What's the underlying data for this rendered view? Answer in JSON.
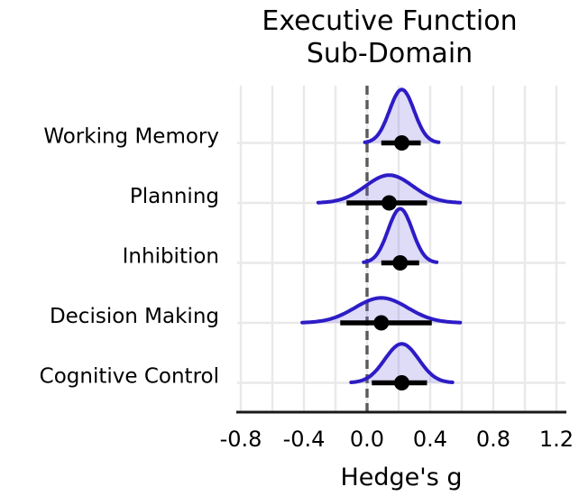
{
  "figure": {
    "title_line1": "Executive Function",
    "title_line2": "Sub-Domain",
    "xlabel": "Hedge's g"
  },
  "chart_data": {
    "type": "ridgeline_forest",
    "title": "Executive Function Sub-Domain",
    "xlabel": "Hedge's g",
    "ylabel": "",
    "xlim": [
      -0.82,
      1.26
    ],
    "xticks": [
      -0.8,
      -0.4,
      0.0,
      0.4,
      0.8,
      1.2
    ],
    "xtick_labels": [
      "-0.8",
      "-0.4",
      "0.0",
      "0.4",
      "0.8",
      "1.2"
    ],
    "grid": true,
    "grid_step": 0.2,
    "zero_reference_line": 0.0,
    "rows": [
      {
        "label": "Working Memory",
        "mean": 0.22,
        "ci_low": 0.09,
        "ci_high": 0.34,
        "sd": 0.078
      },
      {
        "label": "Planning",
        "mean": 0.14,
        "ci_low": -0.13,
        "ci_high": 0.38,
        "sd": 0.15
      },
      {
        "label": "Inhibition",
        "mean": 0.21,
        "ci_low": 0.09,
        "ci_high": 0.33,
        "sd": 0.077
      },
      {
        "label": "Decision Making",
        "mean": 0.09,
        "ci_low": -0.17,
        "ci_high": 0.41,
        "sd": 0.167
      },
      {
        "label": "Cognitive Control",
        "mean": 0.22,
        "ci_low": 0.03,
        "ci_high": 0.38,
        "sd": 0.107
      }
    ],
    "colors": {
      "curve_stroke": "#2d1cc6",
      "curve_fill": "rgba(104,96,212,0.22)",
      "point_estimate": "#000000",
      "ci_bar": "#000000",
      "grid_line": "#e9e9e9",
      "zero_line": "#5a5a5a",
      "axis_line": "#1a1a1a",
      "text": "#000000"
    }
  }
}
